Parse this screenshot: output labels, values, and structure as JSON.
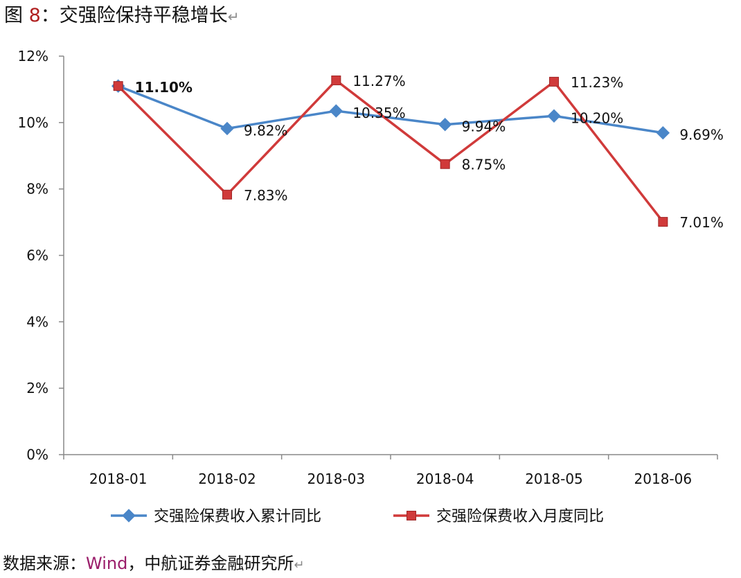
{
  "header": {
    "title_prefix": "图 ",
    "title_number": "8",
    "title_text": "：交强险保持平稳增长",
    "return_mark": "↵"
  },
  "source": {
    "prefix": "数据来源：",
    "wind": "Wind",
    "suffix": "，中航证券金融研究所",
    "return_mark": "↵"
  },
  "colors": {
    "series1": "#4a86c8",
    "series2": "#d03a3a",
    "axis": "#888888"
  },
  "chart_data": {
    "type": "line",
    "categories": [
      "2018-01",
      "2018-02",
      "2018-03",
      "2018-04",
      "2018-05",
      "2018-06"
    ],
    "y_ticks": [
      "0%",
      "2%",
      "4%",
      "6%",
      "8%",
      "10%",
      "12%"
    ],
    "ylim": [
      0,
      12
    ],
    "grid": false,
    "legend_position": "bottom",
    "series": [
      {
        "name": "交强险保费收入累计同比",
        "marker": "diamond",
        "values": [
          11.1,
          9.82,
          10.35,
          9.94,
          10.2,
          9.69
        ],
        "labels": [
          "11.10%",
          "9.82%",
          "10.35%",
          "9.94%",
          "10.20%",
          "9.69%"
        ]
      },
      {
        "name": "交强险保费收入月度同比",
        "marker": "square",
        "values": [
          11.1,
          7.83,
          11.27,
          8.75,
          11.23,
          7.01
        ],
        "labels": [
          "",
          "7.83%",
          "11.27%",
          "8.75%",
          "11.23%",
          "7.01%"
        ]
      }
    ]
  }
}
